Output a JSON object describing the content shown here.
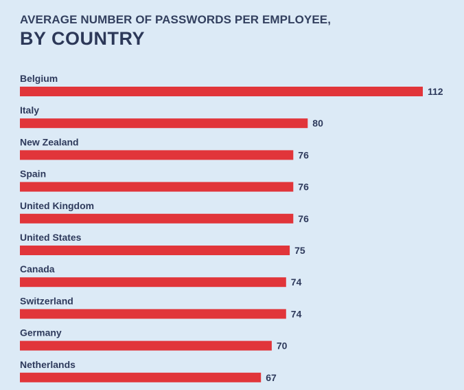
{
  "chart_data": {
    "type": "bar",
    "orientation": "horizontal",
    "title": "AVERAGE NUMBER OF PASSWORDS PER EMPLOYEE,",
    "subtitle": "BY COUNTRY",
    "xlabel": "",
    "ylabel": "",
    "categories": [
      "Belgium",
      "Italy",
      "New Zealand",
      "Spain",
      "United Kingdom",
      "United States",
      "Canada",
      "Switzerland",
      "Germany",
      "Netherlands"
    ],
    "values": [
      112,
      80,
      76,
      76,
      76,
      75,
      74,
      74,
      70,
      67
    ],
    "value_labels": [
      "112",
      "80",
      "76",
      "76",
      "76",
      "75",
      "74",
      "74",
      "70",
      "67"
    ],
    "xlim": [
      0,
      112
    ],
    "grid": false,
    "legend": "none",
    "bar_color": "#e1353a",
    "background_color": "#dceaf6",
    "text_color": "#2e3a5c"
  }
}
